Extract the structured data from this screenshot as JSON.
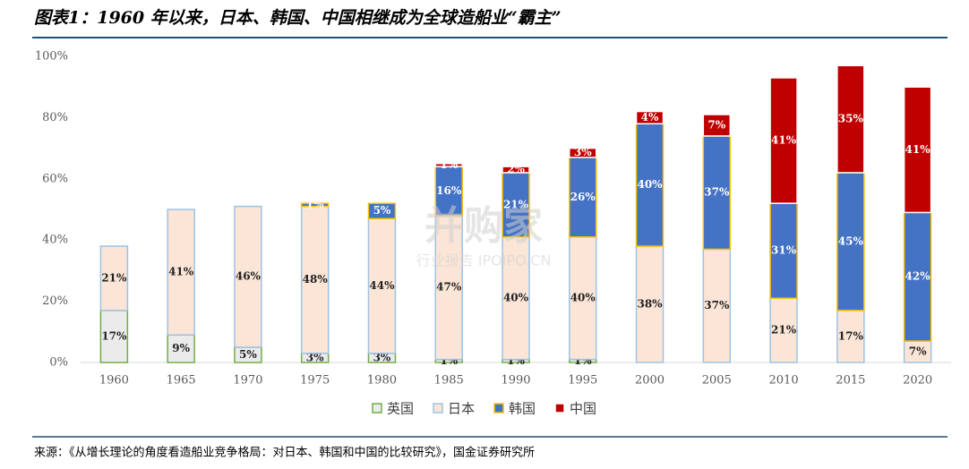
{
  "chart_data": {
    "type": "stacked-bar",
    "title": "图表1：1960 年以来，日本、韩国、中国相继成为全球造船业“霸主”",
    "source": "来源：《从增长理论的角度看造船业竞争格局：对日本、韩国和中国的比较研究》，国金证券研究所",
    "watermark": [
      "并购家",
      "行业报告 IPOIPO.CN"
    ],
    "categories": [
      "1960",
      "1965",
      "1970",
      "1975",
      "1980",
      "1985",
      "1990",
      "1995",
      "2000",
      "2005",
      "2010",
      "2015",
      "2020"
    ],
    "series": [
      {
        "name": "英国",
        "color": "#ebebeb",
        "border": "#70ad47",
        "values": [
          17,
          9,
          5,
          3,
          3,
          1,
          1,
          1,
          null,
          null,
          null,
          null,
          null
        ],
        "value_labels": [
          "17%",
          "9%",
          "5%",
          "3%",
          "3%",
          "1%",
          "1%",
          "1%",
          null,
          null,
          null,
          null,
          null
        ]
      },
      {
        "name": "日本",
        "color": "#fbe5d6",
        "border": "#9dc3e6",
        "values": [
          21,
          41,
          46,
          48,
          44,
          47,
          40,
          40,
          38,
          37,
          21,
          17,
          7
        ],
        "value_labels": [
          "21%",
          "41%",
          "46%",
          "48%",
          "44%",
          "47%",
          "40%",
          "40%",
          "38%",
          "37%",
          "21%",
          "17%",
          "7%"
        ]
      },
      {
        "name": "韩国",
        "color": "#4472c4",
        "border": "#ffc000",
        "values": [
          null,
          null,
          null,
          1,
          5,
          16,
          21,
          26,
          40,
          37,
          31,
          45,
          42
        ],
        "value_labels": [
          null,
          null,
          null,
          "1%",
          "5%",
          "16%",
          "21%",
          "26%",
          "40%",
          "37%",
          "31%",
          "45%",
          "42%"
        ]
      },
      {
        "name": "中国",
        "color": "#c00000",
        "border": "#ffffff",
        "values": [
          null,
          null,
          null,
          null,
          null,
          1,
          2,
          3,
          4,
          7,
          41,
          35,
          41
        ],
        "value_labels": [
          null,
          null,
          null,
          null,
          null,
          "1%",
          "2%",
          "3%",
          "4%",
          "7%",
          "41%",
          "35%",
          "41%"
        ]
      }
    ],
    "ylim": [
      0,
      100
    ],
    "yticks": [
      {
        "value": 0,
        "label": "0%"
      },
      {
        "value": 20,
        "label": "20%"
      },
      {
        "value": 40,
        "label": "40%"
      },
      {
        "value": 60,
        "label": "60%"
      },
      {
        "value": 80,
        "label": "80%"
      },
      {
        "value": 100,
        "label": "100%"
      }
    ],
    "grid": false
  }
}
